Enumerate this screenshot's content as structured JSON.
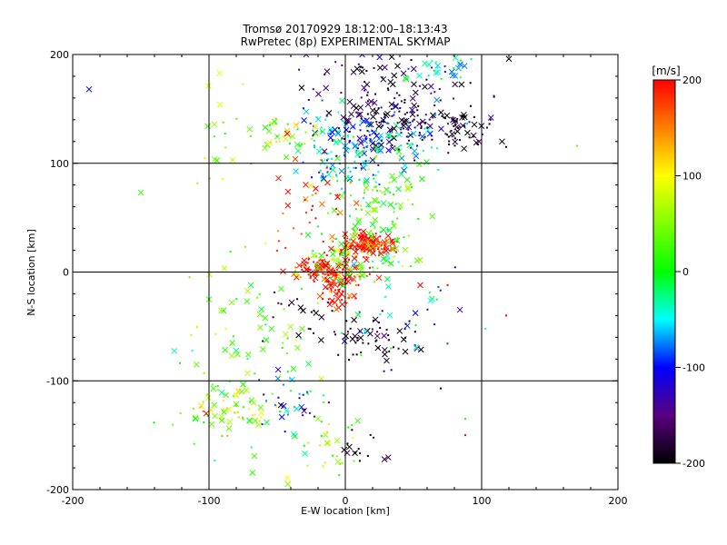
{
  "header": {
    "line1": "Tromsø 20170929 18:12:00–18:13:43",
    "line2": "RwPretec (8p) EXPERIMENTAL SKYMAP"
  },
  "colorbar": {
    "unit": "[m/s]",
    "ticks": [
      "200",
      "100",
      "0",
      "-100",
      "-200"
    ],
    "range": [
      -200,
      200
    ]
  },
  "chart_data": {
    "type": "scatter",
    "title": "Tromsø 20170929 18:12:00–18:13:43",
    "subtitle": "RwPretec (8p) EXPERIMENTAL SKYMAP",
    "xlabel": "E-W location [km]",
    "ylabel": "N-S location [km]",
    "xlim": [
      -200,
      200
    ],
    "ylim": [
      -200,
      200
    ],
    "xticks": [
      "-200",
      "-100",
      "0",
      "100",
      "200"
    ],
    "yticks": [
      "200",
      "100",
      "0",
      "-100",
      "-200"
    ],
    "grid": true,
    "colorscale": "velocity [m/s], -200 black to 200 red",
    "markers": [
      "x (large)",
      "dot (small)"
    ],
    "clusters": [
      {
        "x": 12,
        "y": 110,
        "sx": 22,
        "sy": 18,
        "v": -60,
        "n": 140
      },
      {
        "x": 45,
        "y": 135,
        "sx": 28,
        "sy": 12,
        "v": -180,
        "n": 120
      },
      {
        "x": 85,
        "y": 130,
        "sx": 10,
        "sy": 8,
        "v": -200,
        "n": 40
      },
      {
        "x": 20,
        "y": 128,
        "sx": 25,
        "sy": 12,
        "v": -110,
        "n": 80
      },
      {
        "x": 25,
        "y": 175,
        "sx": 30,
        "sy": 15,
        "v": -170,
        "n": 70
      },
      {
        "x": 70,
        "y": 185,
        "sx": 15,
        "sy": 8,
        "v": -40,
        "n": 30
      },
      {
        "x": -45,
        "y": 125,
        "sx": 10,
        "sy": 8,
        "v": 60,
        "n": 40
      },
      {
        "x": 20,
        "y": 60,
        "sx": 18,
        "sy": 30,
        "v": 20,
        "n": 120
      },
      {
        "x": 15,
        "y": 25,
        "sx": 12,
        "sy": 5,
        "v": 200,
        "n": 140
      },
      {
        "x": -15,
        "y": 2,
        "sx": 15,
        "sy": 5,
        "v": 200,
        "n": 110
      },
      {
        "x": -5,
        "y": -15,
        "sx": 7,
        "sy": 10,
        "v": 190,
        "n": 70
      },
      {
        "x": 10,
        "y": 10,
        "sx": 20,
        "sy": 12,
        "v": 30,
        "n": 80
      },
      {
        "x": -25,
        "y": 60,
        "sx": 15,
        "sy": 30,
        "v": 190,
        "n": 40
      },
      {
        "x": 20,
        "y": -65,
        "sx": 20,
        "sy": 12,
        "v": -200,
        "n": 60
      },
      {
        "x": -30,
        "y": -40,
        "sx": 15,
        "sy": 10,
        "v": -180,
        "n": 20
      },
      {
        "x": -80,
        "y": -125,
        "sx": 15,
        "sy": 12,
        "v": 60,
        "n": 60
      },
      {
        "x": -40,
        "y": -120,
        "sx": 12,
        "sy": 15,
        "v": -100,
        "n": 30
      },
      {
        "x": -60,
        "y": -100,
        "sx": 30,
        "sy": 40,
        "v": 20,
        "n": 60
      },
      {
        "x": -10,
        "y": -160,
        "sx": 10,
        "sy": 15,
        "v": 50,
        "n": 25
      },
      {
        "x": 15,
        "y": -160,
        "sx": 10,
        "sy": 8,
        "v": -190,
        "n": 15
      },
      {
        "x": -75,
        "y": -60,
        "sx": 20,
        "sy": 40,
        "v": 40,
        "n": 40
      },
      {
        "x": 50,
        "y": -30,
        "sx": 25,
        "sy": 20,
        "v": -60,
        "n": 30
      },
      {
        "x": -90,
        "y": 130,
        "sx": 10,
        "sy": 40,
        "v": 50,
        "n": 20
      }
    ],
    "points": [
      {
        "x": -188,
        "y": 168,
        "v": -100,
        "m": "x"
      },
      {
        "x": -150,
        "y": 73,
        "v": 20,
        "m": "x"
      },
      {
        "x": -110,
        "y": -135,
        "v": -10,
        "m": "x"
      },
      {
        "x": -102,
        "y": -130,
        "v": 190,
        "m": "x"
      },
      {
        "x": 120,
        "y": 196,
        "v": -200,
        "m": "x"
      },
      {
        "x": 170,
        "y": 116,
        "v": 40,
        "m": "."
      },
      {
        "x": 115,
        "y": 120,
        "v": -200,
        "m": "x"
      },
      {
        "x": 118,
        "y": 115,
        "v": -200,
        "m": "."
      },
      {
        "x": 118,
        "y": -40,
        "v": 200,
        "m": "."
      },
      {
        "x": 88,
        "y": -150,
        "v": 200,
        "m": "."
      },
      {
        "x": 70,
        "y": -107,
        "v": -200,
        "m": "."
      },
      {
        "x": 88,
        "y": -135,
        "v": 10,
        "m": "."
      },
      {
        "x": 55,
        "y": -12,
        "v": 200,
        "m": "x"
      },
      {
        "x": 75,
        "y": -12,
        "v": 200,
        "m": "."
      },
      {
        "x": -100,
        "y": -25,
        "v": 30,
        "m": "x"
      },
      {
        "x": -95,
        "y": -57,
        "v": 80,
        "m": "."
      }
    ]
  }
}
